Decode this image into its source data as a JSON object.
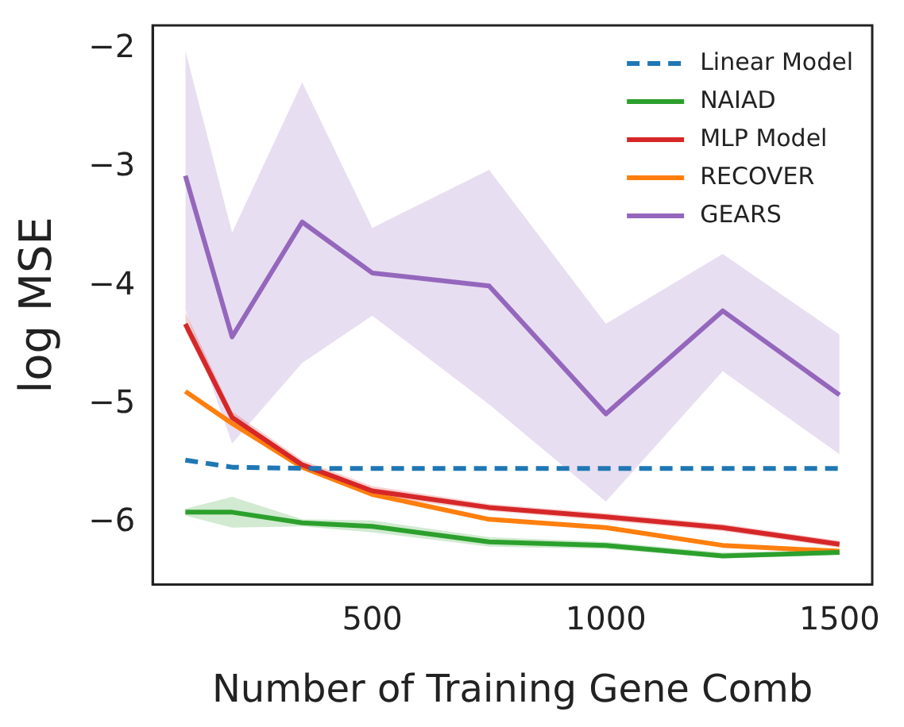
{
  "chart_data": {
    "type": "line",
    "xlabel": "Number of Training Gene Comb",
    "ylabel": "log MSE",
    "x": [
      100,
      200,
      350,
      500,
      750,
      1000,
      1250,
      1500
    ],
    "xlim": [
      30,
      1570
    ],
    "ylim": [
      -6.52,
      -1.8
    ],
    "xticks": [
      500,
      1000,
      1500
    ],
    "yticks": [
      -6,
      -5,
      -4,
      -3,
      -2
    ],
    "grid": false,
    "legend": "top right",
    "marker": "none",
    "series": [
      {
        "name": "Linear Model",
        "color": "#1f77b4",
        "line_style": "dashed",
        "values": [
          -5.47,
          -5.53,
          -5.54,
          -5.54,
          -5.54,
          -5.54,
          -5.54,
          -5.54
        ]
      },
      {
        "name": "NAIAD",
        "color": "#2ca02c",
        "values": [
          -5.91,
          -5.91,
          -6.0,
          -6.03,
          -6.16,
          -6.19,
          -6.28,
          -6.25
        ],
        "lower": [
          -5.94,
          -6.04,
          -6.03,
          -6.08,
          -6.2,
          -6.22,
          -6.3,
          -6.27
        ],
        "upper": [
          -5.88,
          -5.78,
          -5.97,
          -5.98,
          -6.12,
          -6.16,
          -6.25,
          -6.23
        ]
      },
      {
        "name": "MLP Model",
        "color": "#d62728",
        "values": [
          -4.32,
          -5.11,
          -5.51,
          -5.73,
          -5.87,
          -5.95,
          -6.04,
          -6.18
        ],
        "lower": [
          -4.38,
          -5.15,
          -5.55,
          -5.77,
          -5.9,
          -5.98,
          -6.07,
          -6.21
        ],
        "upper": [
          -4.22,
          -5.06,
          -5.47,
          -5.69,
          -5.84,
          -5.92,
          -6.01,
          -6.15
        ]
      },
      {
        "name": "RECOVER",
        "color": "#ff7f0e",
        "values": [
          -4.89,
          -5.16,
          -5.53,
          -5.76,
          -5.97,
          -6.04,
          -6.19,
          -6.24
        ]
      },
      {
        "name": "GEARS",
        "color": "#9467bd",
        "values": [
          -3.07,
          -4.43,
          -3.46,
          -3.89,
          -4.0,
          -5.08,
          -4.21,
          -4.92
        ],
        "lower": [
          -4.2,
          -5.33,
          -4.65,
          -4.25,
          -5.0,
          -5.82,
          -4.72,
          -5.42
        ],
        "upper": [
          -2.01,
          -3.55,
          -2.28,
          -3.51,
          -3.02,
          -4.32,
          -3.73,
          -4.41
        ]
      }
    ]
  }
}
